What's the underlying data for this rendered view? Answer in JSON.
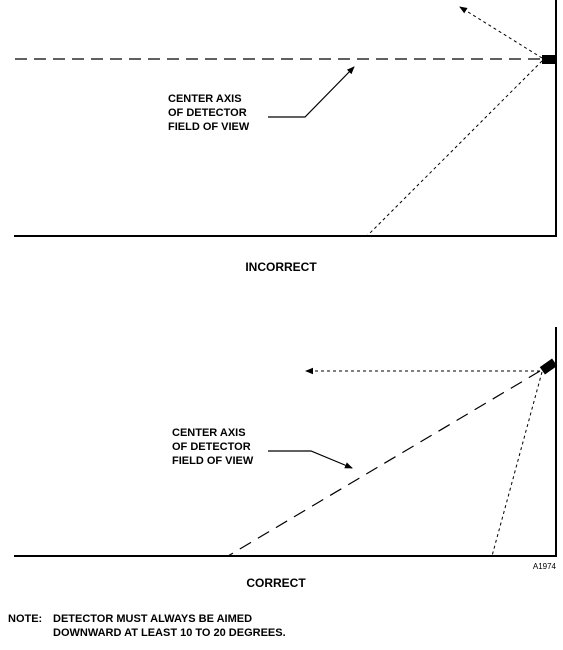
{
  "panels": {
    "incorrect": {
      "callout_lines": [
        "CENTER AXIS",
        "OF DETECTOR",
        "FIELD OF VIEW"
      ],
      "caption": "INCORRECT"
    },
    "correct": {
      "callout_lines": [
        "CENTER AXIS",
        "OF DETECTOR",
        "FIELD OF VIEW"
      ],
      "caption": "CORRECT"
    }
  },
  "figure_id": "A1974",
  "note": {
    "prefix": "NOTE:",
    "line1": "DETECTOR MUST ALWAYS BE AIMED",
    "line2": "DOWNWARD AT LEAST 10 TO 20 DEGREES."
  }
}
